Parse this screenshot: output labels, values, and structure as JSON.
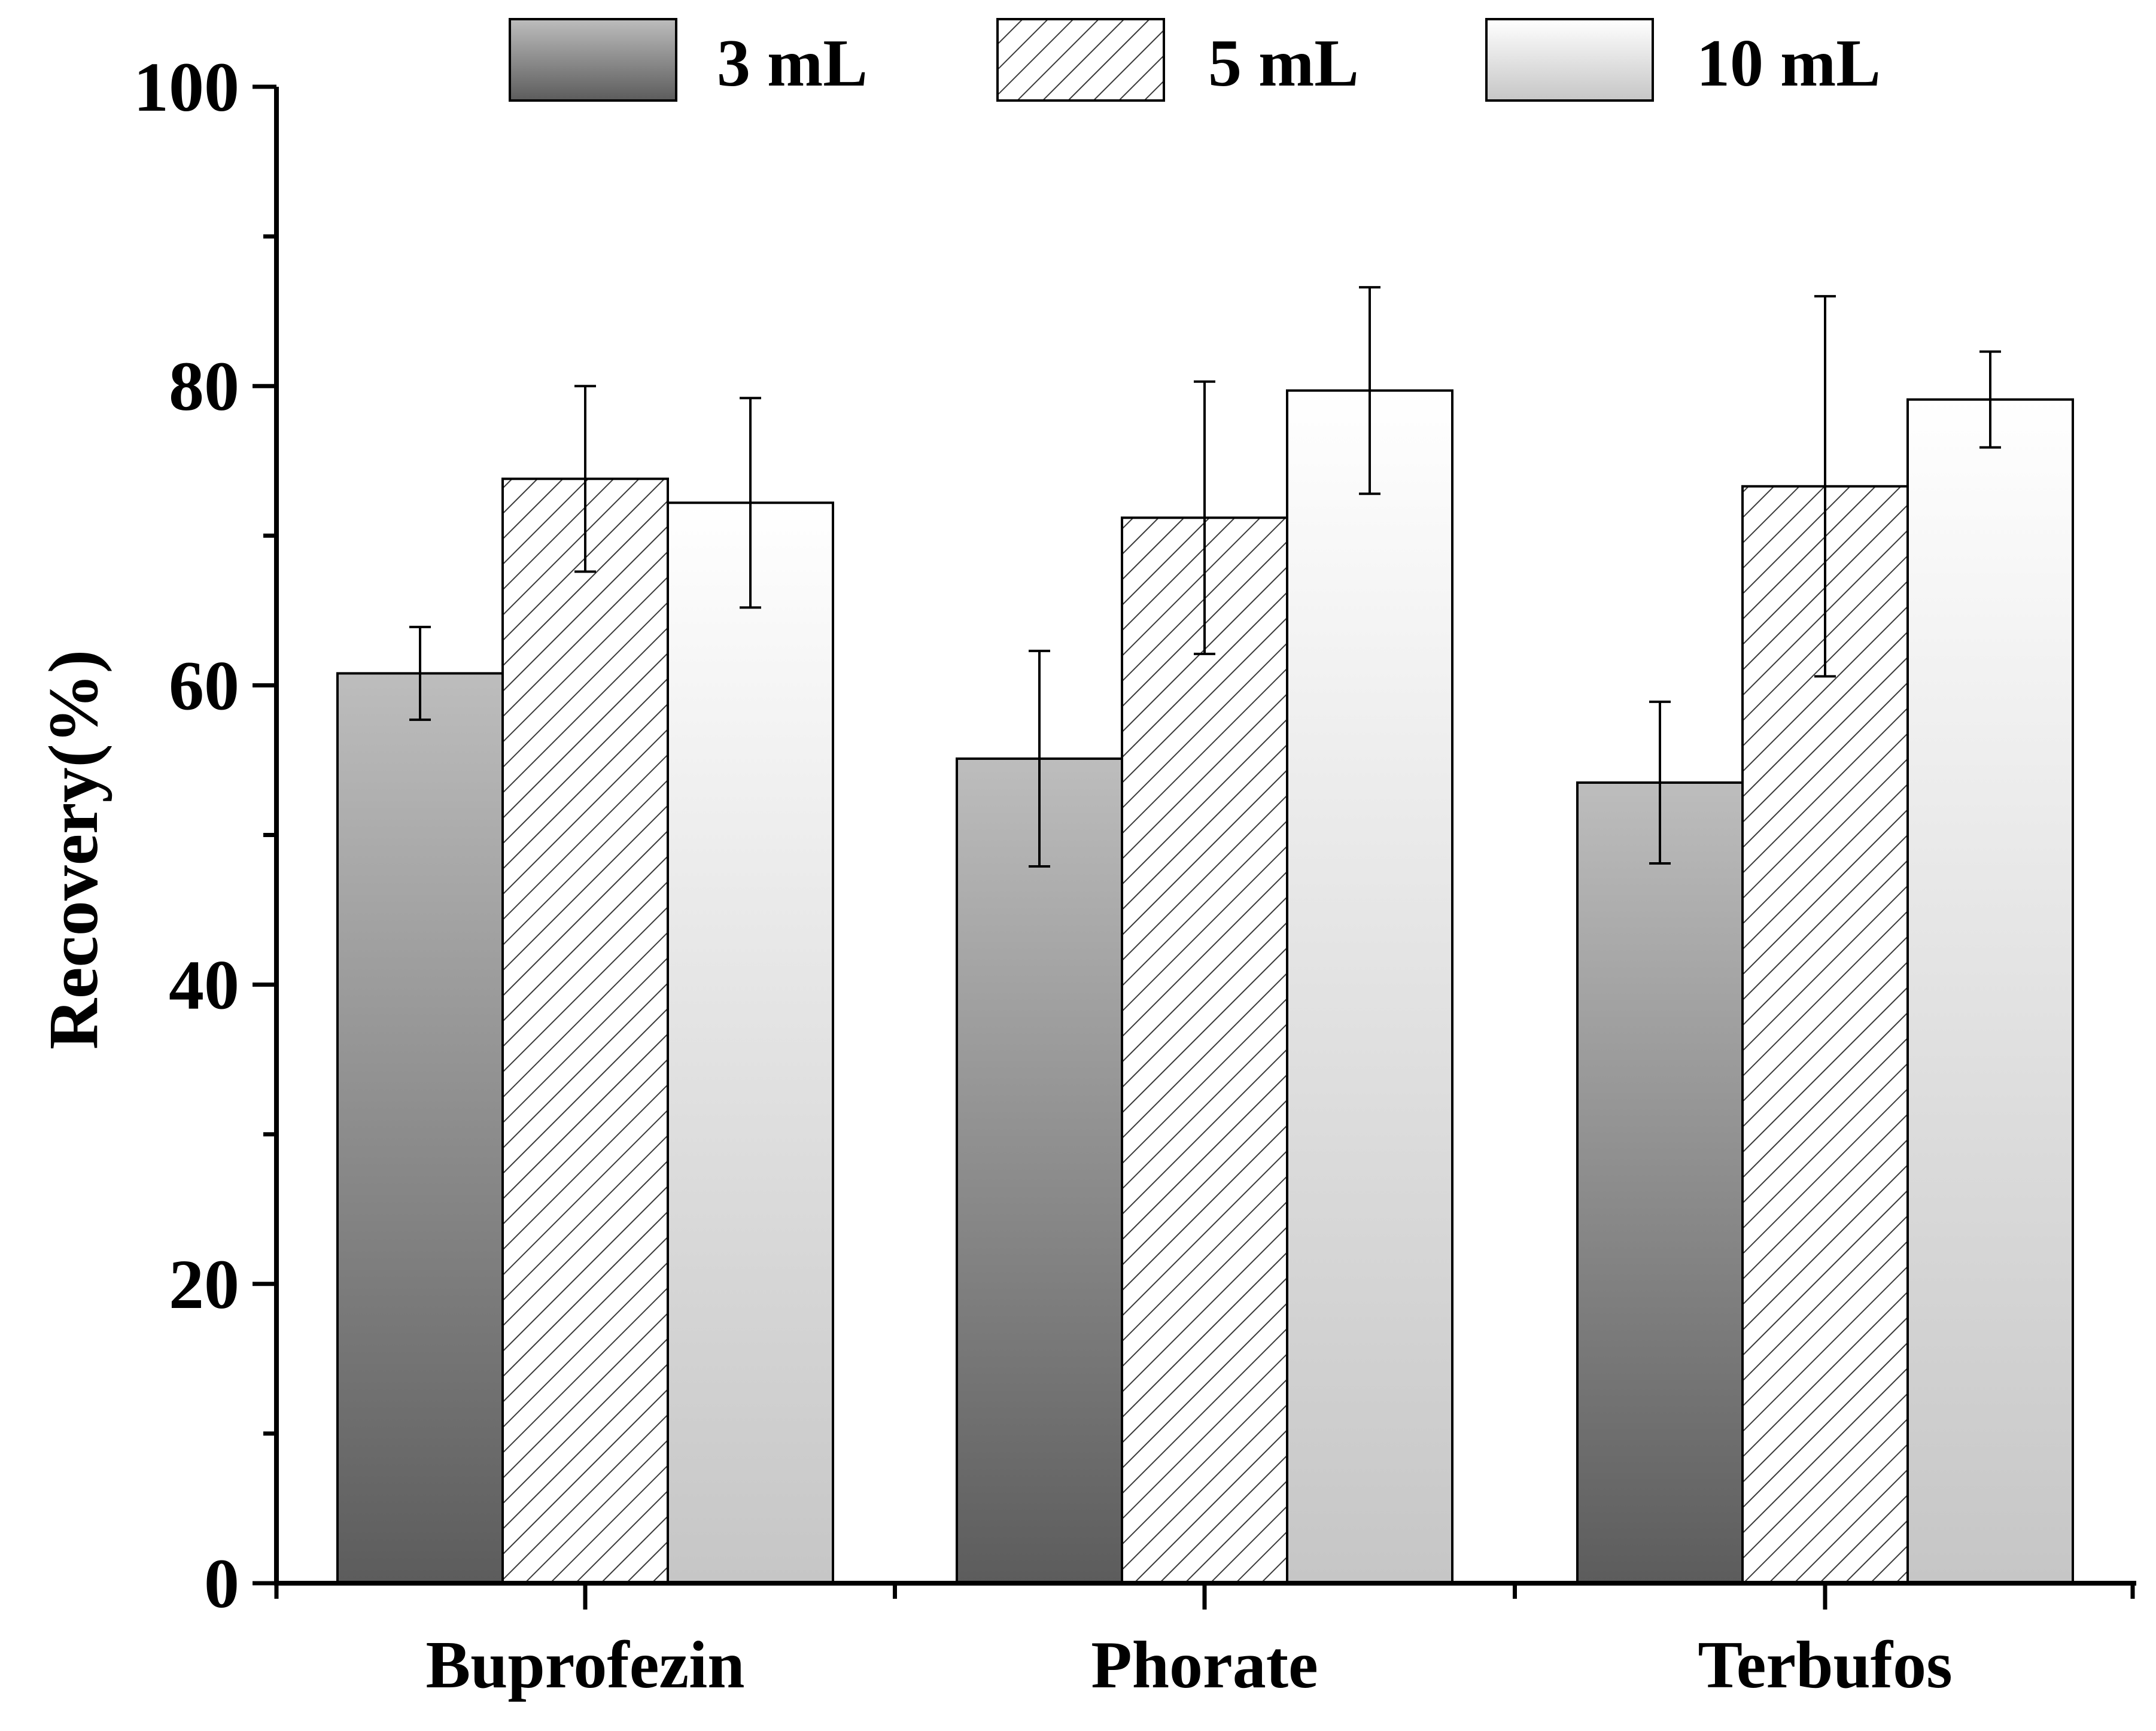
{
  "chart_data": {
    "type": "bar",
    "title": "",
    "xlabel": "",
    "ylabel": "Recovery(%)",
    "ylim": [
      0,
      100
    ],
    "yticks": [
      0,
      20,
      40,
      60,
      80,
      100
    ],
    "grid": false,
    "legend_position": "top",
    "categories": [
      "Buprofezin",
      "Phorate",
      "Terbufos"
    ],
    "series": [
      {
        "name": "3 mL",
        "style": "gradient-dark",
        "colors": [
          "#b9b9b9",
          "#5f5f5f"
        ],
        "values": [
          60.8,
          55.1,
          53.5
        ],
        "errors": [
          3.1,
          7.2,
          5.4
        ]
      },
      {
        "name": "5 mL",
        "style": "hatched",
        "colors": [
          "#ffffff",
          "#3a3a3a"
        ],
        "values": [
          73.8,
          71.2,
          73.3
        ],
        "errors": [
          6.2,
          9.1,
          12.7
        ]
      },
      {
        "name": "10 mL",
        "style": "gradient-light",
        "colors": [
          "#ffffff",
          "#c8c8c8"
        ],
        "values": [
          72.2,
          79.7,
          79.1
        ],
        "errors": [
          7.0,
          6.9,
          3.2
        ]
      }
    ]
  }
}
